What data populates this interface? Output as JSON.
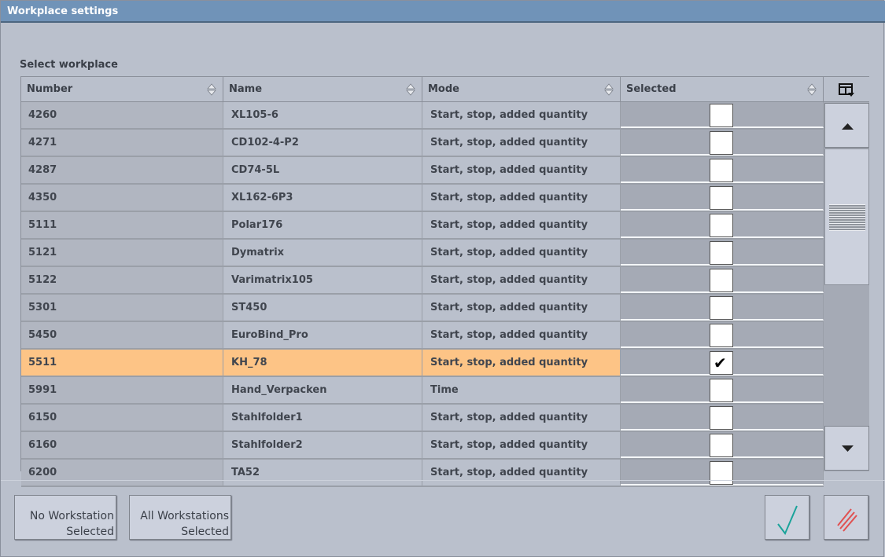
{
  "window": {
    "title": "Workplace settings"
  },
  "section_label": "Select workplace",
  "columns": [
    "Number",
    "Name",
    "Mode",
    "Selected"
  ],
  "rows": [
    {
      "number": "4260",
      "name": "XL105-6",
      "mode": "Start, stop, added quantity",
      "selected": false
    },
    {
      "number": "4271",
      "name": "CD102-4-P2",
      "mode": "Start, stop, added quantity",
      "selected": false
    },
    {
      "number": "4287",
      "name": "CD74-5L",
      "mode": "Start, stop, added quantity",
      "selected": false
    },
    {
      "number": "4350",
      "name": "XL162-6P3",
      "mode": "Start, stop, added quantity",
      "selected": false
    },
    {
      "number": "5111",
      "name": "Polar176",
      "mode": "Start, stop, added quantity",
      "selected": false
    },
    {
      "number": "5121",
      "name": "Dymatrix",
      "mode": "Start, stop, added quantity",
      "selected": false
    },
    {
      "number": "5122",
      "name": "Varimatrix105",
      "mode": "Start, stop, added quantity",
      "selected": false
    },
    {
      "number": "5301",
      "name": "ST450",
      "mode": "Start, stop, added quantity",
      "selected": false
    },
    {
      "number": "5450",
      "name": "EuroBind_Pro",
      "mode": "Start, stop, added quantity",
      "selected": false
    },
    {
      "number": "5511",
      "name": "KH_78",
      "mode": "Start, stop, added quantity",
      "selected": true
    },
    {
      "number": "5991",
      "name": "Hand_Verpacken",
      "mode": "Time",
      "selected": false
    },
    {
      "number": "6150",
      "name": "Stahlfolder1",
      "mode": "Start, stop, added quantity",
      "selected": false
    },
    {
      "number": "6160",
      "name": "Stahlfolder2",
      "mode": "Start, stop, added quantity",
      "selected": false
    },
    {
      "number": "6200",
      "name": "TA52",
      "mode": "Start, stop, added quantity",
      "selected": false
    }
  ],
  "buttons": {
    "none_line1": "No Workstation",
    "none_line2": "Selected",
    "all_line1": "All Workstations",
    "all_line2": "Selected"
  },
  "colors": {
    "highlight": "#fdc486",
    "titlebar": "#7093b8",
    "confirm": "#1aa39a",
    "cancel": "#e05050"
  }
}
